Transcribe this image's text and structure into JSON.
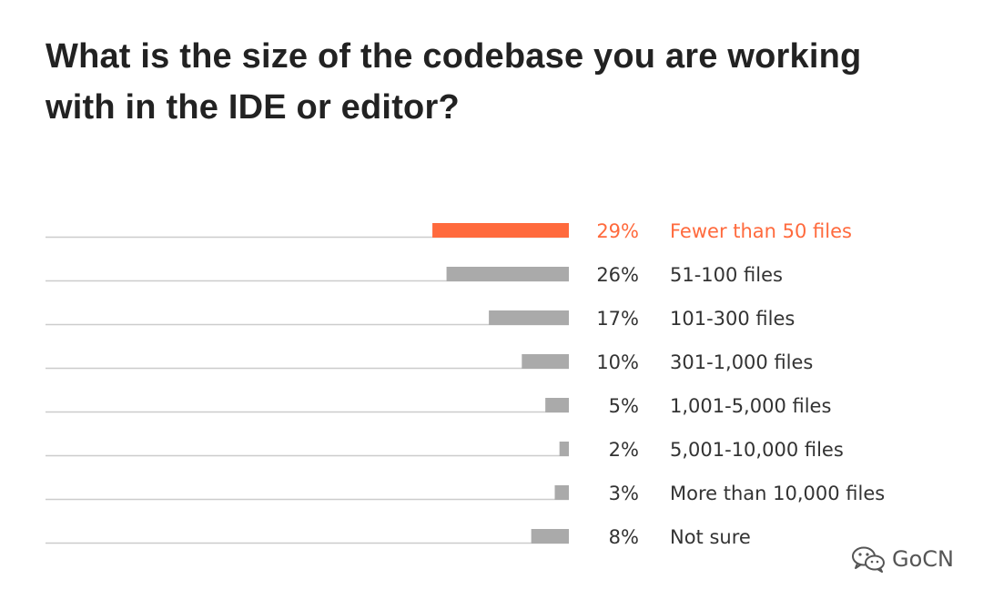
{
  "title": "What is the size of the codebase you are working with in the IDE or editor?",
  "colors": {
    "highlight": "#ff6a3d",
    "bar": "#aaaaaa",
    "baseline": "#cccccc",
    "label": "#333333"
  },
  "watermark": {
    "text": "GoCN",
    "icon": "wechat-icon"
  },
  "chart_data": {
    "type": "bar",
    "orientation": "horizontal",
    "categories": [
      "Fewer than 50 files",
      "51-100 files",
      "101-300 files",
      "301-1,000 files",
      "1,001-5,000 files",
      "5,001-10,000 files",
      "More than 10,000 files",
      "Not sure"
    ],
    "values": [
      29,
      26,
      17,
      10,
      5,
      2,
      3,
      8
    ],
    "value_labels": [
      "29%",
      "26%",
      "17%",
      "10%",
      "5%",
      "2%",
      "3%",
      "8%"
    ],
    "highlight_index": 0,
    "xlim": [
      0,
      100
    ],
    "grid": false
  }
}
